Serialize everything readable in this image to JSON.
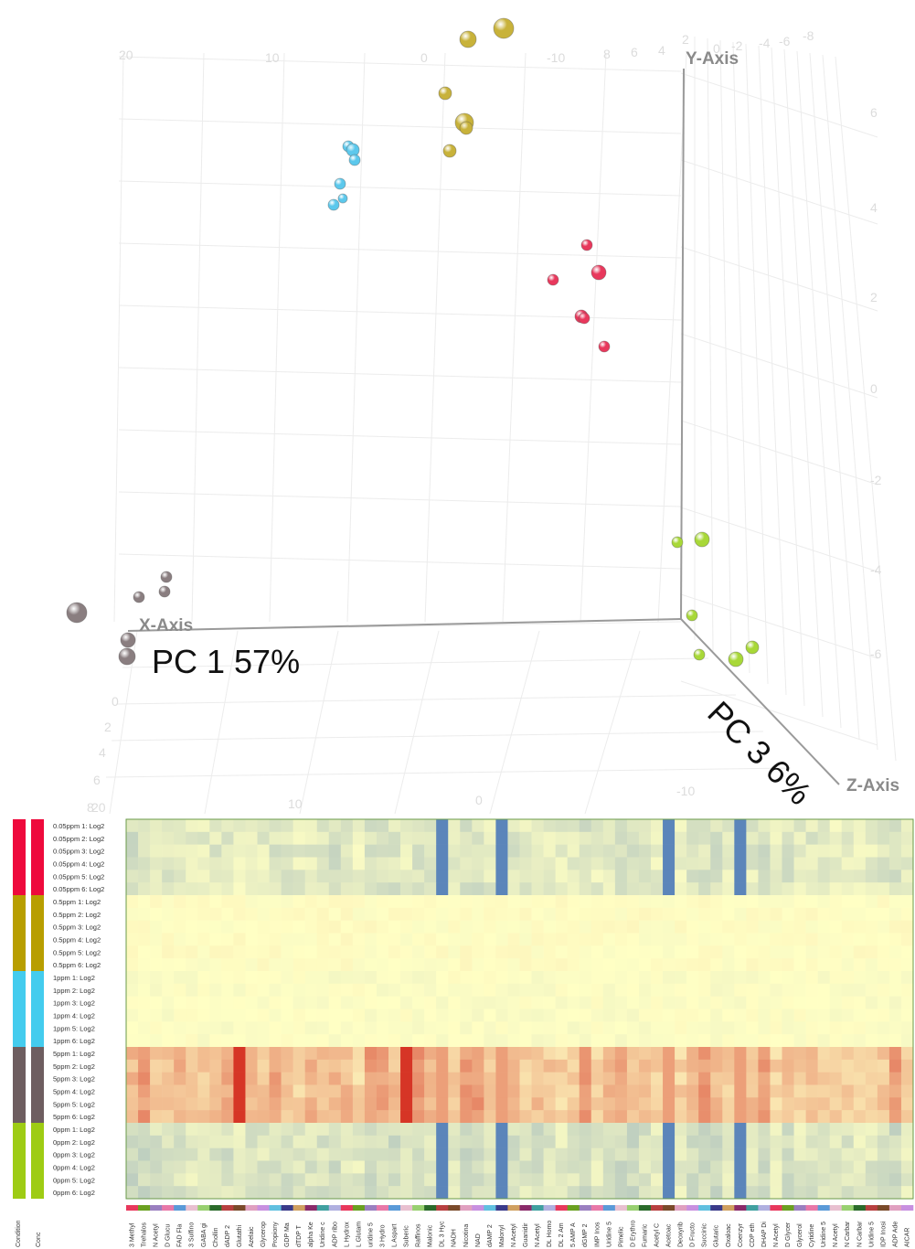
{
  "chart_data": [
    {
      "type": "scatter",
      "subtype": "3d-pca",
      "axes": {
        "x": {
          "name": "X-Axis",
          "label": "PC 1 57%",
          "ticks": [
            "20",
            "10",
            "0",
            "-10"
          ]
        },
        "y": {
          "name": "Y-Axis",
          "ticks": [
            "6",
            "4",
            "2",
            "0",
            "-2",
            "-4",
            "-6"
          ]
        },
        "z": {
          "name": "Z-Axis",
          "label": "PC 3 6%",
          "ticks": [
            "-8",
            "-6",
            "-4",
            "-2",
            "0",
            "2",
            "4",
            "6",
            "8"
          ],
          "depth_ticks": [
            "0",
            "2",
            "4",
            "6",
            "8"
          ],
          "bottom_ticks": [
            "20",
            "10",
            "0",
            "-10"
          ]
        }
      },
      "grid": true,
      "groups": [
        {
          "name": "0.05ppm",
          "color": "#e8385c"
        },
        {
          "name": "0.5ppm",
          "color": "#c8b23a"
        },
        {
          "name": "1ppm",
          "color": "#5cc8ec"
        },
        {
          "name": "5ppm",
          "color": "#8a7e80"
        },
        {
          "name": "0ppm",
          "color": "#a8d838"
        }
      ]
    },
    {
      "type": "heatmap",
      "row_labels": [
        "0.05ppm 1: Log2",
        "0.05ppm 2: Log2",
        "0.05ppm 3: Log2",
        "0.05ppm 4: Log2",
        "0.05ppm 5: Log2",
        "0.05ppm 6: Log2",
        "0.5ppm 1: Log2",
        "0.5ppm 2: Log2",
        "0.5ppm 3: Log2",
        "0.5ppm 4: Log2",
        "0.5ppm 5: Log2",
        "0.5ppm 6: Log2",
        "1ppm 1: Log2",
        "1ppm 2: Log2",
        "1ppm 3: Log2",
        "1ppm 4: Log2",
        "1ppm 5: Log2",
        "1ppm 6: Log2",
        "5ppm 1: Log2",
        "5ppm 2: Log2",
        "5ppm 3: Log2",
        "5ppm 4: Log2",
        "5ppm 5: Log2",
        "5ppm 6: Log2",
        "0ppm 1: Log2",
        "0ppm 2: Log2",
        "0ppm 3: Log2",
        "0ppm 4: Log2",
        "0ppm 5: Log2",
        "0ppm 6: Log2"
      ],
      "column_labels": [
        "3 Methyl",
        "Trehalos",
        "N Acetyl",
        "D Glucu",
        "FAD Fla",
        "3 Sulfino",
        "GABA gi",
        "Chollin",
        "dADP 2",
        "Glutathi",
        "Azelaic",
        "Glycerop",
        "Propiony",
        "GDP Ma",
        "dTDP T",
        "alpha Ke",
        "Uridine c",
        "ADP ribo",
        "L Hydrox",
        "L Glutam",
        "uridine 5",
        "3 Hydro",
        "L Aspart",
        "Suberic",
        "Raffinos",
        "Malonic",
        "DL 3 Hyc",
        "NADH",
        "Nicotina",
        "NAD",
        "dAMP 2",
        "Malonyl",
        "N Acetyl",
        "Guanidir",
        "N Acetyl",
        "DL Homo",
        "DL 2 Am",
        "5 AMP A",
        "dGMP 2",
        "IMP Inos",
        "Uridine 5",
        "Pimelic",
        "D Erythro",
        "Fumaric",
        "Acetyl C",
        "Acetoac",
        "Deoxyrib",
        "D Fructo",
        "Succinic",
        "Glutaric",
        "Oxaloac",
        "Coenzyr",
        "CDP eth",
        "DHAP Di",
        "N Acetyl",
        "D Glycer",
        "Glycerol",
        "Cytidine",
        "Uridine 5",
        "N Acetyl",
        "N Carbar",
        "N Carbar",
        "Uridine 5",
        "IDP Inosi",
        "ADP Ade",
        "AICAR"
      ],
      "color_bar_labels": [
        "Condition",
        "Conc"
      ],
      "row_group_colors": [
        "#ee0a3c",
        "#b89e00",
        "#44ccee",
        "#6e5e60",
        "#9ecc14"
      ],
      "color_scale": {
        "low": "#3e6fb8",
        "mid": "#ffffc4",
        "high": "#d42a1e"
      }
    }
  ]
}
